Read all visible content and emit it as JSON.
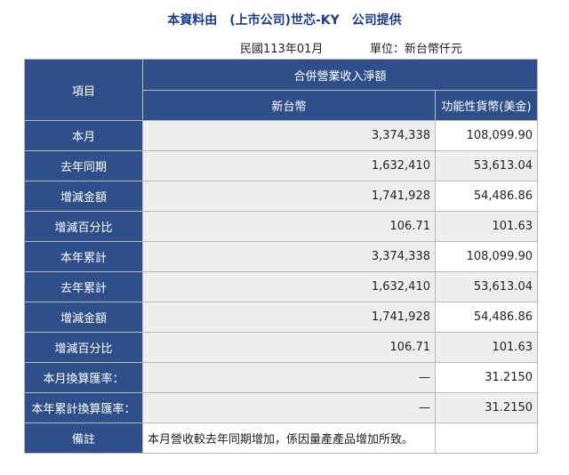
{
  "header": {
    "title": "本資料由　(上市公司)世芯-KY　公司提供",
    "period": "民國113年01月",
    "unit": "單位：新台幣仟元"
  },
  "table": {
    "item_header": "項目",
    "group_header": "合併營業收入淨額",
    "col_twd": "新台幣",
    "col_usd": "功能性貨幣(美金)",
    "rows": [
      {
        "label": "本月",
        "twd": "3,374,338",
        "usd": "108,099.90"
      },
      {
        "label": "去年同期",
        "twd": "1,632,410",
        "usd": "53,613.04"
      },
      {
        "label": "增減金額",
        "twd": "1,741,928",
        "usd": "54,486.86"
      },
      {
        "label": "增減百分比",
        "twd": "106.71",
        "usd": "101.63"
      },
      {
        "label": "本年累計",
        "twd": "3,374,338",
        "usd": "108,099.90"
      },
      {
        "label": "去年累計",
        "twd": "1,632,410",
        "usd": "53,613.04"
      },
      {
        "label": "增減金額",
        "twd": "1,741,928",
        "usd": "54,486.86"
      },
      {
        "label": "增減百分比",
        "twd": "106.71",
        "usd": "101.63"
      },
      {
        "label": "本月換算匯率：",
        "twd": "—",
        "usd": "31.2150"
      },
      {
        "label": "本年累計換算匯率：",
        "twd": "—",
        "usd": "31.2150"
      }
    ],
    "remark_label": "備註",
    "remark_text": "本月營收較去年同期增加，係因量產產品增加所致。"
  },
  "colors": {
    "header_bg": "#2e4f8a",
    "title_color": "#1a3c8c",
    "shaded_cell": "#eeeeee"
  }
}
